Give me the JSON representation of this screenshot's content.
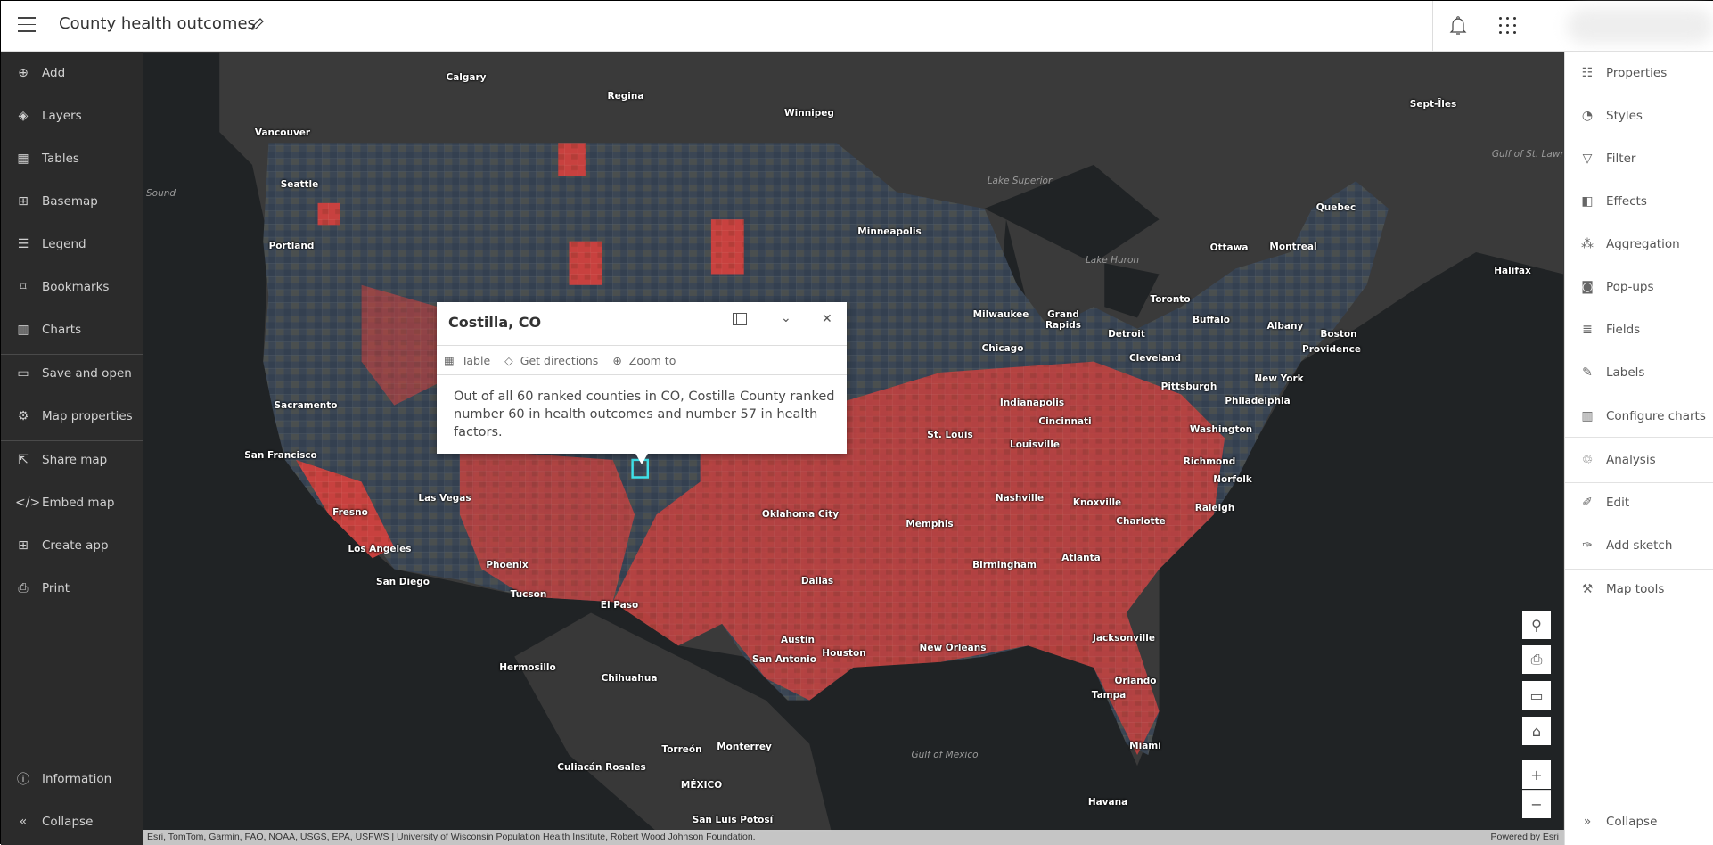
{
  "header": {
    "title": "County health outcomes"
  },
  "left_nav": {
    "items": [
      {
        "label": "Add",
        "icon": "plus-circle"
      },
      {
        "label": "Layers",
        "icon": "layers"
      },
      {
        "label": "Tables",
        "icon": "table"
      },
      {
        "label": "Basemap",
        "icon": "basemap"
      },
      {
        "label": "Legend",
        "icon": "legend"
      },
      {
        "label": "Bookmarks",
        "icon": "bookmark"
      },
      {
        "label": "Charts",
        "icon": "chart"
      },
      {
        "label": "Save and open",
        "icon": "folder"
      },
      {
        "label": "Map properties",
        "icon": "gear"
      },
      {
        "label": "Share map",
        "icon": "share"
      },
      {
        "label": "Embed map",
        "icon": "code"
      },
      {
        "label": "Create app",
        "icon": "apps"
      },
      {
        "label": "Print",
        "icon": "print"
      }
    ],
    "bottom": [
      {
        "label": "Information",
        "icon": "info"
      },
      {
        "label": "Collapse",
        "icon": "chevrons-left"
      }
    ]
  },
  "right_nav": {
    "items": [
      {
        "label": "Properties",
        "icon": "sliders"
      },
      {
        "label": "Styles",
        "icon": "shapes"
      },
      {
        "label": "Filter",
        "icon": "filter"
      },
      {
        "label": "Effects",
        "icon": "effects"
      },
      {
        "label": "Aggregation",
        "icon": "aggregation"
      },
      {
        "label": "Pop-ups",
        "icon": "popup"
      },
      {
        "label": "Fields",
        "icon": "fields"
      },
      {
        "label": "Labels",
        "icon": "label"
      },
      {
        "label": "Configure charts",
        "icon": "chart"
      },
      {
        "label": "Analysis",
        "icon": "analysis"
      },
      {
        "label": "Edit",
        "icon": "edit"
      },
      {
        "label": "Add sketch",
        "icon": "sketch"
      },
      {
        "label": "Map tools",
        "icon": "wrench"
      }
    ],
    "collapse": "Collapse"
  },
  "popup": {
    "title": "Costilla, CO",
    "actions": [
      "Table",
      "Get directions",
      "Zoom to"
    ],
    "body": "Out of all 60 ranked counties in CO, Costilla County ranked number 60 in health outcomes and number 57 in health factors."
  },
  "map": {
    "labels": [
      "Calgary",
      "Regina",
      "Winnipeg",
      "Vancouver",
      "Seattle",
      "Portland",
      "Minneapolis",
      "Quebec",
      "Ottawa",
      "Montreal",
      "Halifax",
      "Toronto",
      "Buffalo",
      "Albany",
      "Boston",
      "Providence",
      "Milwaukee",
      "Grand Rapids",
      "Detroit",
      "Chicago",
      "Cleveland",
      "New York",
      "Pittsburgh",
      "Philadelphia",
      "Indianapolis",
      "Cincinnati",
      "Washington",
      "Sacramento",
      "San Francisco",
      "St. Louis",
      "Louisville",
      "Richmond",
      "Norfolk",
      "Fresno",
      "Las Vegas",
      "Nashville",
      "Knoxville",
      "Raleigh",
      "Charlotte",
      "Oklahoma City",
      "Memphis",
      "Los Angeles",
      "Phoenix",
      "Atlanta",
      "Birmingham",
      "San Diego",
      "Tucson",
      "Dallas",
      "El Paso",
      "Jacksonville",
      "Austin",
      "Houston",
      "New Orleans",
      "San Antonio",
      "Hermosillo",
      "Chihuahua",
      "Orlando",
      "Tampa",
      "Torreón",
      "Monterrey",
      "Culiacán Rosales",
      "Miami",
      "MÉXICO",
      "San Luis Potosí",
      "Havana",
      "Sept-Îles"
    ],
    "water_labels": [
      "Gulf of Mexico",
      "Gulf of St. Lawrence",
      "Lake Superior",
      "Lake Huron",
      "Sound"
    ],
    "attribution": "Esri, TomTom, Garmin, FAO, NOAA, USGS, EPA, USFWS | University of Wisconsin Population Health Institute, Robert Wood Johnson Foundation.",
    "powered_by": "Powered by Esri",
    "colors": {
      "worse": "#c8413f",
      "mid": "#7a4a3a",
      "better": "#3b4654",
      "water": "#202325",
      "land": "#3a3a3a",
      "selection": "#3fe0e8"
    },
    "controls": [
      "search",
      "print",
      "fullscreen",
      "home",
      "zoom-in",
      "zoom-out"
    ]
  }
}
